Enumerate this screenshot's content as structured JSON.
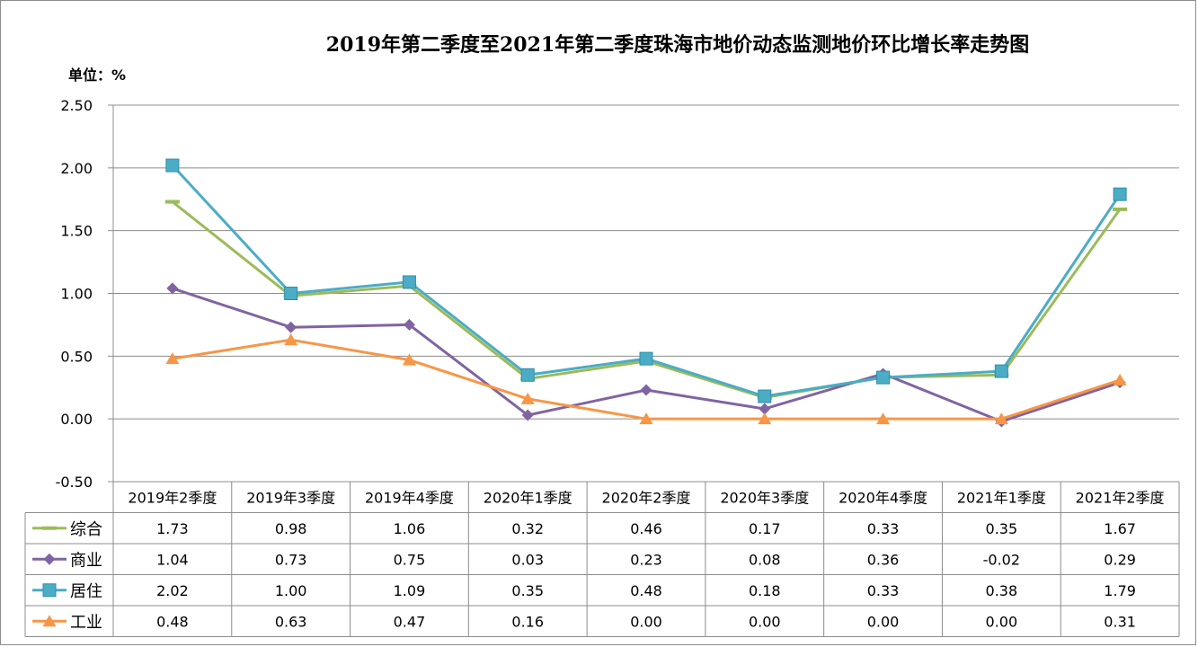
{
  "title": "2019年第二季度至2021年第二季度珠海市地价动态监测地价环比增长率走势图",
  "unit_label": "单位：%",
  "chart_data": {
    "type": "line",
    "title": "2019年第二季度至2021年第二季度珠海市地价动态监测地价环比增长率走势图",
    "ylabel": "单位：%",
    "ylim": [
      -0.5,
      2.5
    ],
    "yticks": [
      "2.50",
      "2.00",
      "1.50",
      "1.00",
      "0.50",
      "0.00",
      "-0.50"
    ],
    "grid": true,
    "legend": "data-table-left",
    "categories": [
      "2019年2季度",
      "2019年3季度",
      "2019年4季度",
      "2020年1季度",
      "2020年2季度",
      "2020年3季度",
      "2020年4季度",
      "2021年1季度",
      "2021年2季度"
    ],
    "series": [
      {
        "name": "综合",
        "color": "#9bbb59",
        "marker": "dash",
        "values": [
          1.73,
          0.98,
          1.06,
          0.32,
          0.46,
          0.17,
          0.33,
          0.35,
          1.67
        ],
        "labels": [
          "1.73",
          "0.98",
          "1.06",
          "0.32",
          "0.46",
          "0.17",
          "0.33",
          "0.35",
          "1.67"
        ]
      },
      {
        "name": "商业",
        "color": "#8064a2",
        "marker": "diamond",
        "values": [
          1.04,
          0.73,
          0.75,
          0.03,
          0.23,
          0.08,
          0.36,
          -0.02,
          0.29
        ],
        "labels": [
          "1.04",
          "0.73",
          "0.75",
          "0.03",
          "0.23",
          "0.08",
          "0.36",
          "-0.02",
          "0.29"
        ]
      },
      {
        "name": "居住",
        "color": "#4bacc6",
        "marker": "square",
        "values": [
          2.02,
          1.0,
          1.09,
          0.35,
          0.48,
          0.18,
          0.33,
          0.38,
          1.79
        ],
        "labels": [
          "2.02",
          "1.00",
          "1.09",
          "0.35",
          "0.48",
          "0.18",
          "0.33",
          "0.38",
          "1.79"
        ]
      },
      {
        "name": "工业",
        "color": "#f79646",
        "marker": "triangle",
        "values": [
          0.48,
          0.63,
          0.47,
          0.16,
          0.0,
          0.0,
          0.0,
          0.0,
          0.31
        ],
        "labels": [
          "0.48",
          "0.63",
          "0.47",
          "0.16",
          "0.00",
          "0.00",
          "0.00",
          "0.00",
          "0.31"
        ]
      }
    ]
  }
}
